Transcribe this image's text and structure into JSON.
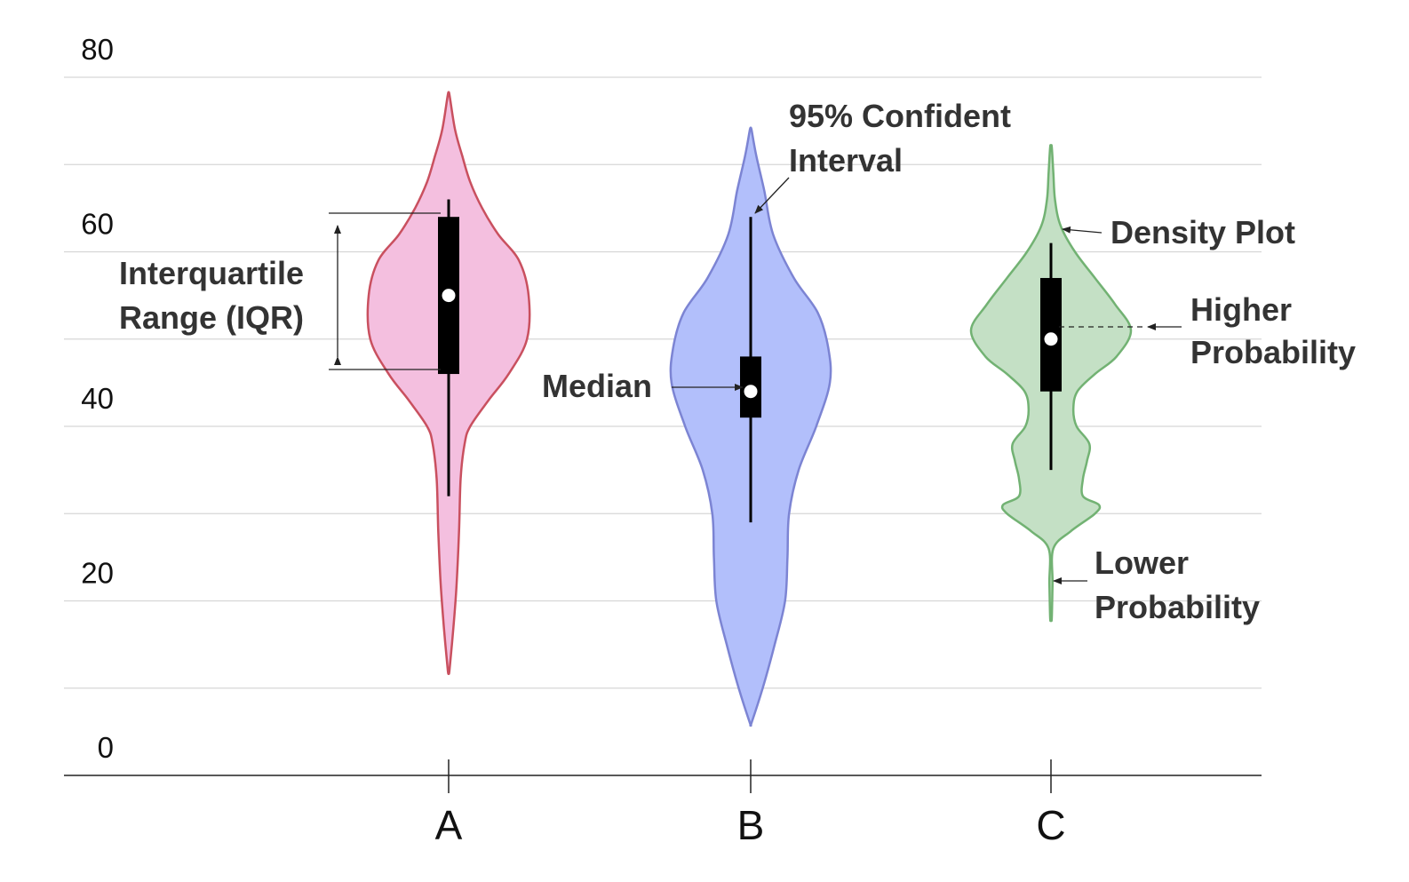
{
  "chart_data": {
    "type": "violin",
    "title": "",
    "xlabel": "",
    "ylabel": "",
    "ylim": [
      0,
      80
    ],
    "y_ticks": [
      "0",
      "20",
      "40",
      "60",
      "80"
    ],
    "grid": true,
    "categories": [
      "A",
      "B",
      "C"
    ],
    "series": [
      {
        "category": "A",
        "color": "#f4bfdf",
        "stroke": "#c9505f",
        "min": 12,
        "max": 78,
        "q1": 46,
        "median": 55,
        "q3": 64,
        "whisker_low": 32,
        "whisker_high": 66,
        "density": [
          [
            12,
            0.01
          ],
          [
            17,
            0.06
          ],
          [
            22,
            0.1
          ],
          [
            28,
            0.13
          ],
          [
            34,
            0.15
          ],
          [
            38,
            0.2
          ],
          [
            40,
            0.27
          ],
          [
            43,
            0.5
          ],
          [
            46,
            0.75
          ],
          [
            50,
            0.98
          ],
          [
            55,
            1.0
          ],
          [
            59,
            0.88
          ],
          [
            62,
            0.62
          ],
          [
            65,
            0.42
          ],
          [
            68,
            0.27
          ],
          [
            71,
            0.17
          ],
          [
            74,
            0.08
          ],
          [
            78,
            0.01
          ]
        ]
      },
      {
        "category": "B",
        "color": "#b2bffb",
        "stroke": "#7c84d3",
        "min": 6,
        "max": 74,
        "q1": 41,
        "median": 44,
        "q3": 48,
        "whisker_low": 29,
        "whisker_high": 64,
        "density": [
          [
            6,
            0.01
          ],
          [
            10,
            0.15
          ],
          [
            15,
            0.3
          ],
          [
            20,
            0.43
          ],
          [
            25,
            0.46
          ],
          [
            30,
            0.48
          ],
          [
            35,
            0.6
          ],
          [
            40,
            0.82
          ],
          [
            45,
            0.99
          ],
          [
            49,
            0.97
          ],
          [
            53,
            0.84
          ],
          [
            57,
            0.54
          ],
          [
            62,
            0.28
          ],
          [
            67,
            0.17
          ],
          [
            71,
            0.07
          ],
          [
            74,
            0.01
          ]
        ]
      },
      {
        "category": "C",
        "color": "#c4e0c5",
        "stroke": "#72b273",
        "min": 18,
        "max": 72,
        "q1": 44,
        "median": 50,
        "q3": 57,
        "whisker_low": 35,
        "whisker_high": 61,
        "density": [
          [
            18,
            0.01
          ],
          [
            22,
            0.02
          ],
          [
            26,
            0.03
          ],
          [
            28,
            0.25
          ],
          [
            30,
            0.55
          ],
          [
            31,
            0.6
          ],
          [
            32,
            0.4
          ],
          [
            34,
            0.4
          ],
          [
            36,
            0.45
          ],
          [
            38,
            0.48
          ],
          [
            40,
            0.32
          ],
          [
            42,
            0.28
          ],
          [
            44,
            0.33
          ],
          [
            46,
            0.55
          ],
          [
            48,
            0.82
          ],
          [
            51,
            1.0
          ],
          [
            54,
            0.8
          ],
          [
            57,
            0.55
          ],
          [
            60,
            0.3
          ],
          [
            63,
            0.12
          ],
          [
            66,
            0.05
          ],
          [
            69,
            0.03
          ],
          [
            72,
            0.01
          ]
        ]
      }
    ]
  },
  "annotations": {
    "iqr": [
      "Interquartile",
      "Range (IQR)"
    ],
    "ci": [
      "95% Confident",
      "Interval"
    ],
    "median": "Median",
    "density": "Density Plot",
    "higher": [
      "Higher",
      "Probability"
    ],
    "lower": [
      "Lower",
      "Probability"
    ]
  }
}
